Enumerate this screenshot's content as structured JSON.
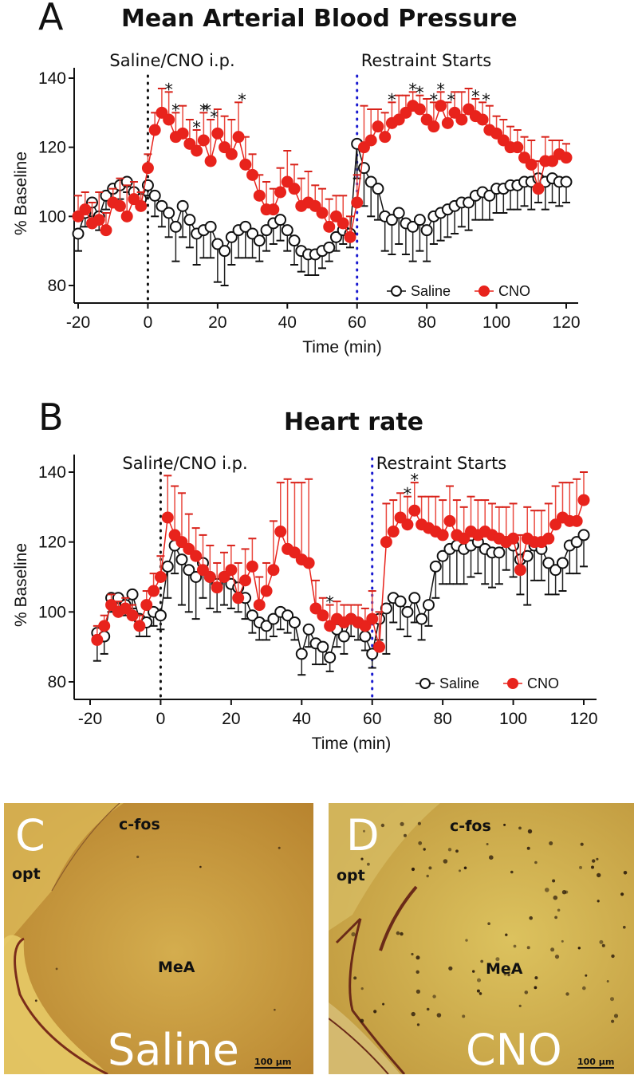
{
  "figure": {
    "panels": {
      "A": {
        "letter": "A"
      },
      "B": {
        "letter": "B"
      },
      "C": {
        "letter": "C",
        "top_label": "c-fos",
        "left_label": "opt",
        "region_label": "MeA",
        "caption": "Saline",
        "scale_bar": "100 µm"
      },
      "D": {
        "letter": "D",
        "top_label": "c-fos",
        "left_label": "opt",
        "region_label": "MeA",
        "caption": "CNO",
        "scale_bar": "100 µm"
      }
    },
    "colors": {
      "saline": "#111111",
      "cno": "#e8231c",
      "cno_err": "#e8231c",
      "injection_line": "#111111",
      "restraint_line": "#1a1ad0",
      "tissue_bg": "#c79a3c",
      "tissue_light": "#e1c25a"
    }
  },
  "chart_data": [
    {
      "type": "line",
      "title": "Mean Arterial Blood Pressure",
      "xlabel": "Time (min)",
      "ylabel": "% Baseline",
      "xlim": [
        -24,
        124
      ],
      "ylim": [
        76,
        144
      ],
      "xticks": [
        -20,
        0,
        20,
        40,
        60,
        80,
        100,
        120
      ],
      "yticks": [
        80,
        100,
        120,
        140
      ],
      "xtick_labels": [
        "-20",
        "0",
        "20",
        "40",
        "60",
        "80",
        "100",
        "120"
      ],
      "ytick_labels": [
        "80",
        "100",
        "120",
        "140"
      ],
      "grid": false,
      "legend": {
        "position": "bottom-right",
        "entries": [
          "Saline",
          "CNO"
        ]
      },
      "annotations": [
        {
          "text": "Saline/CNO i.p.",
          "x": 0,
          "type": "vline-label"
        },
        {
          "text": "Restraint Starts",
          "x": 60,
          "type": "vline-label"
        }
      ],
      "vlines": [
        {
          "x": 0,
          "style": "dotted",
          "color": "black"
        },
        {
          "x": 60,
          "style": "dotted",
          "color": "blue"
        }
      ],
      "significance_markers": {
        "symbol": "*",
        "x": [
          6,
          8,
          14,
          16,
          17,
          19,
          27,
          70,
          76,
          78,
          82,
          84,
          87,
          94,
          97
        ]
      },
      "x": [
        -20,
        -18,
        -16,
        -14,
        -12,
        -10,
        -8,
        -6,
        -4,
        -2,
        0,
        2,
        4,
        6,
        8,
        10,
        12,
        14,
        16,
        18,
        20,
        22,
        24,
        26,
        28,
        30,
        32,
        34,
        36,
        38,
        40,
        42,
        44,
        46,
        48,
        50,
        52,
        54,
        56,
        58,
        60,
        62,
        64,
        66,
        68,
        70,
        72,
        74,
        76,
        78,
        80,
        82,
        84,
        86,
        88,
        90,
        92,
        94,
        96,
        98,
        100,
        102,
        104,
        106,
        108,
        110,
        112,
        114,
        116,
        118,
        120
      ],
      "series": [
        {
          "name": "Saline",
          "marker": "open-circle",
          "values": [
            95,
            101,
            104,
            100,
            106,
            108,
            109,
            110,
            107,
            105,
            109,
            106,
            103,
            101,
            97,
            103,
            99,
            95,
            96,
            97,
            92,
            90,
            94,
            96,
            97,
            95,
            93,
            96,
            98,
            99,
            96,
            93,
            90,
            89,
            89,
            90,
            91,
            94,
            96,
            95,
            121,
            114,
            110,
            108,
            100,
            99,
            101,
            98,
            97,
            99,
            96,
            100,
            101,
            102,
            103,
            104,
            104,
            106,
            107,
            106,
            108,
            108,
            109,
            109,
            110,
            110,
            111,
            110,
            111,
            110,
            110
          ],
          "err": [
            5,
            4,
            4,
            4,
            4,
            3,
            4,
            3,
            3,
            3,
            3,
            6,
            6,
            7,
            10,
            9,
            8,
            9,
            8,
            9,
            11,
            10,
            8,
            8,
            9,
            7,
            6,
            6,
            6,
            6,
            6,
            7,
            6,
            6,
            6,
            5,
            4,
            4,
            4,
            4,
            10,
            11,
            10,
            9,
            10,
            10,
            9,
            9,
            10,
            9,
            9,
            8,
            8,
            8,
            8,
            7,
            8,
            7,
            8,
            7,
            7,
            7,
            7,
            7,
            7,
            8,
            7,
            8,
            7,
            7,
            6
          ]
        },
        {
          "name": "CNO",
          "marker": "filled-circle",
          "values": [
            100,
            102,
            98,
            99,
            96,
            104,
            103,
            100,
            105,
            103,
            114,
            125,
            130,
            128,
            123,
            124,
            121,
            119,
            122,
            116,
            124,
            120,
            118,
            123,
            115,
            112,
            106,
            102,
            102,
            107,
            110,
            108,
            103,
            104,
            103,
            101,
            97,
            100,
            98,
            94,
            104,
            120,
            122,
            126,
            123,
            127,
            128,
            130,
            132,
            131,
            128,
            126,
            132,
            127,
            130,
            128,
            131,
            129,
            128,
            125,
            124,
            122,
            120,
            120,
            117,
            115,
            108,
            116,
            116,
            118,
            117
          ],
          "err": [
            6,
            5,
            6,
            8,
            5,
            4,
            8,
            9,
            5,
            4,
            4,
            5,
            7,
            8,
            7,
            8,
            7,
            6,
            8,
            12,
            7,
            9,
            10,
            10,
            8,
            6,
            6,
            8,
            6,
            7,
            9,
            7,
            8,
            9,
            6,
            7,
            8,
            6,
            8,
            6,
            8,
            12,
            9,
            5,
            7,
            6,
            7,
            5,
            4,
            4,
            6,
            7,
            4,
            6,
            6,
            8,
            6,
            5,
            5,
            7,
            5,
            6,
            6,
            5,
            6,
            7,
            8,
            7,
            6,
            4,
            4
          ]
        }
      ]
    },
    {
      "type": "line",
      "title": "Heart rate",
      "xlabel": "Time (min)",
      "ylabel": "% Baseline",
      "xlim": [
        -25,
        125
      ],
      "ylim": [
        75,
        145
      ],
      "xticks": [
        -20,
        0,
        20,
        40,
        60,
        80,
        100,
        120
      ],
      "yticks": [
        80,
        100,
        120,
        140
      ],
      "xtick_labels": [
        "-20",
        "0",
        "20",
        "40",
        "60",
        "80",
        "100",
        "120"
      ],
      "ytick_labels": [
        "80",
        "100",
        "120",
        "140"
      ],
      "grid": false,
      "legend": {
        "position": "bottom-right",
        "entries": [
          "Saline",
          "CNO"
        ]
      },
      "annotations": [
        {
          "text": "Saline/CNO i.p.",
          "x": 0,
          "type": "vline-label"
        },
        {
          "text": "Restraint Starts",
          "x": 60,
          "type": "vline-label"
        }
      ],
      "vlines": [
        {
          "x": 0,
          "style": "dotted",
          "color": "black"
        },
        {
          "x": 60,
          "style": "dotted",
          "color": "blue"
        }
      ],
      "significance_markers": {
        "symbol": "*",
        "x": [
          48,
          70,
          72
        ]
      },
      "x": [
        -18,
        -16,
        -14,
        -12,
        -10,
        -8,
        -6,
        -4,
        -2,
        0,
        2,
        4,
        6,
        8,
        10,
        12,
        14,
        16,
        18,
        20,
        22,
        24,
        26,
        28,
        30,
        32,
        34,
        36,
        38,
        40,
        42,
        44,
        46,
        48,
        50,
        52,
        54,
        56,
        58,
        60,
        62,
        64,
        66,
        68,
        70,
        72,
        74,
        76,
        78,
        80,
        82,
        84,
        86,
        88,
        90,
        92,
        94,
        96,
        98,
        100,
        102,
        104,
        106,
        108,
        110,
        112,
        114,
        116,
        118,
        120
      ],
      "series": [
        {
          "name": "Saline",
          "marker": "open-circle",
          "values": [
            94,
            93,
            104,
            104,
            102,
            105,
            98,
            97,
            100,
            99,
            113,
            119,
            115,
            112,
            110,
            114,
            110,
            108,
            110,
            108,
            107,
            104,
            99,
            97,
            96,
            98,
            100,
            99,
            97,
            88,
            95,
            91,
            90,
            87,
            95,
            93,
            98,
            97,
            93,
            88,
            98,
            101,
            104,
            103,
            100,
            104,
            98,
            102,
            113,
            116,
            118,
            119,
            118,
            119,
            120,
            118,
            117,
            117,
            120,
            119,
            115,
            116,
            119,
            118,
            114,
            112,
            114,
            119,
            120,
            122
          ],
          "err": [
            8,
            5,
            4,
            4,
            3,
            4,
            5,
            4,
            4,
            4,
            9,
            8,
            13,
            12,
            12,
            10,
            9,
            8,
            8,
            7,
            7,
            6,
            5,
            5,
            4,
            5,
            5,
            5,
            5,
            6,
            5,
            6,
            5,
            4,
            5,
            5,
            5,
            5,
            4,
            4,
            6,
            13,
            7,
            8,
            7,
            7,
            6,
            6,
            9,
            8,
            10,
            11,
            10,
            9,
            9,
            10,
            10,
            9,
            8,
            9,
            10,
            14,
            10,
            9,
            9,
            7,
            8,
            8,
            9,
            9
          ]
        },
        {
          "name": "CNO",
          "marker": "filled-circle",
          "values": [
            92,
            96,
            102,
            100,
            101,
            99,
            96,
            102,
            106,
            110,
            127,
            122,
            120,
            118,
            116,
            112,
            110,
            107,
            110,
            112,
            104,
            109,
            113,
            102,
            106,
            112,
            123,
            118,
            117,
            115,
            114,
            101,
            99,
            96,
            98,
            97,
            98,
            97,
            96,
            98,
            90,
            120,
            123,
            127,
            125,
            129,
            125,
            124,
            123,
            122,
            126,
            122,
            121,
            123,
            122,
            123,
            122,
            121,
            120,
            121,
            112,
            121,
            120,
            120,
            121,
            125,
            127,
            126,
            126,
            132
          ],
          "err": [
            4,
            3,
            3,
            3,
            3,
            3,
            3,
            4,
            5,
            6,
            12,
            14,
            14,
            10,
            8,
            10,
            9,
            7,
            7,
            7,
            10,
            9,
            8,
            8,
            8,
            14,
            14,
            20,
            20,
            22,
            24,
            8,
            5,
            6,
            5,
            5,
            4,
            5,
            5,
            8,
            10,
            11,
            9,
            7,
            8,
            8,
            8,
            9,
            10,
            10,
            10,
            10,
            9,
            10,
            10,
            9,
            9,
            9,
            10,
            10,
            10,
            9,
            9,
            9,
            10,
            11,
            10,
            11,
            12,
            8
          ]
        }
      ]
    }
  ]
}
